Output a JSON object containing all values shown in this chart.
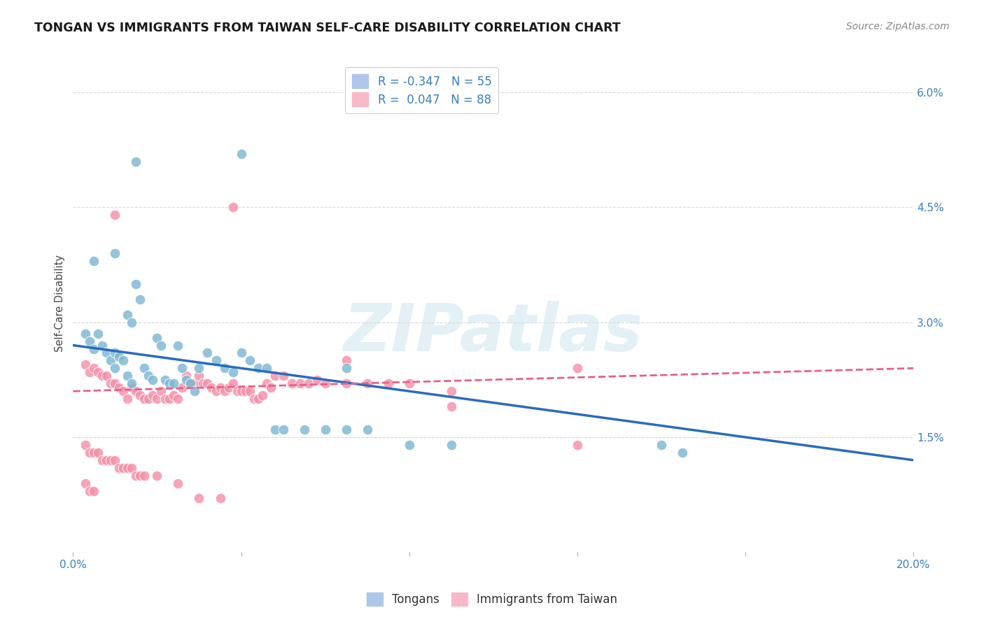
{
  "title": "TONGAN VS IMMIGRANTS FROM TAIWAN SELF-CARE DISABILITY CORRELATION CHART",
  "source": "Source: ZipAtlas.com",
  "ylabel": "Self-Care Disability",
  "xmin": 0.0,
  "xmax": 0.2,
  "ymin": 0.0,
  "ymax": 0.065,
  "yticks": [
    0.0,
    0.015,
    0.03,
    0.045,
    0.06
  ],
  "ytick_labels": [
    "",
    "1.5%",
    "3.0%",
    "4.5%",
    "6.0%"
  ],
  "xticks": [
    0.0,
    0.04,
    0.08,
    0.12,
    0.16,
    0.2
  ],
  "xtick_labels": [
    "0.0%",
    "",
    "",
    "",
    "",
    "20.0%"
  ],
  "watermark_text": "ZIPatlas",
  "tongan_color": "#7bb8d4",
  "taiwan_color": "#f590a8",
  "tongan_line_color": "#2a6bbf",
  "taiwan_line_color": "#e8608a",
  "background_color": "#ffffff",
  "grid_color": "#d8d8d8",
  "tongan_points": [
    [
      0.003,
      0.0285
    ],
    [
      0.004,
      0.0275
    ],
    [
      0.005,
      0.0265
    ],
    [
      0.006,
      0.0285
    ],
    [
      0.007,
      0.027
    ],
    [
      0.008,
      0.026
    ],
    [
      0.009,
      0.025
    ],
    [
      0.01,
      0.026
    ],
    [
      0.011,
      0.0255
    ],
    [
      0.012,
      0.025
    ],
    [
      0.013,
      0.031
    ],
    [
      0.014,
      0.03
    ],
    [
      0.015,
      0.035
    ],
    [
      0.016,
      0.033
    ],
    [
      0.017,
      0.024
    ],
    [
      0.018,
      0.023
    ],
    [
      0.019,
      0.0225
    ],
    [
      0.02,
      0.028
    ],
    [
      0.021,
      0.027
    ],
    [
      0.022,
      0.0225
    ],
    [
      0.023,
      0.022
    ],
    [
      0.024,
      0.022
    ],
    [
      0.025,
      0.027
    ],
    [
      0.026,
      0.024
    ],
    [
      0.027,
      0.0225
    ],
    [
      0.028,
      0.022
    ],
    [
      0.029,
      0.021
    ],
    [
      0.03,
      0.024
    ],
    [
      0.032,
      0.026
    ],
    [
      0.034,
      0.025
    ],
    [
      0.036,
      0.024
    ],
    [
      0.038,
      0.0235
    ],
    [
      0.04,
      0.026
    ],
    [
      0.042,
      0.025
    ],
    [
      0.044,
      0.024
    ],
    [
      0.046,
      0.024
    ],
    [
      0.048,
      0.016
    ],
    [
      0.05,
      0.016
    ],
    [
      0.055,
      0.016
    ],
    [
      0.06,
      0.016
    ],
    [
      0.065,
      0.016
    ],
    [
      0.07,
      0.016
    ],
    [
      0.08,
      0.014
    ],
    [
      0.065,
      0.024
    ],
    [
      0.09,
      0.014
    ],
    [
      0.015,
      0.051
    ],
    [
      0.04,
      0.052
    ],
    [
      0.14,
      0.014
    ],
    [
      0.145,
      0.013
    ],
    [
      0.005,
      0.038
    ],
    [
      0.01,
      0.039
    ],
    [
      0.01,
      0.024
    ],
    [
      0.013,
      0.023
    ],
    [
      0.014,
      0.022
    ]
  ],
  "taiwan_points": [
    [
      0.003,
      0.0245
    ],
    [
      0.004,
      0.0235
    ],
    [
      0.005,
      0.024
    ],
    [
      0.006,
      0.0235
    ],
    [
      0.007,
      0.023
    ],
    [
      0.008,
      0.023
    ],
    [
      0.009,
      0.022
    ],
    [
      0.01,
      0.022
    ],
    [
      0.011,
      0.0215
    ],
    [
      0.012,
      0.021
    ],
    [
      0.013,
      0.02
    ],
    [
      0.014,
      0.0215
    ],
    [
      0.015,
      0.021
    ],
    [
      0.016,
      0.0205
    ],
    [
      0.017,
      0.02
    ],
    [
      0.018,
      0.02
    ],
    [
      0.019,
      0.0205
    ],
    [
      0.02,
      0.02
    ],
    [
      0.021,
      0.021
    ],
    [
      0.022,
      0.02
    ],
    [
      0.023,
      0.02
    ],
    [
      0.024,
      0.0205
    ],
    [
      0.025,
      0.02
    ],
    [
      0.026,
      0.0215
    ],
    [
      0.027,
      0.023
    ],
    [
      0.028,
      0.022
    ],
    [
      0.029,
      0.022
    ],
    [
      0.03,
      0.023
    ],
    [
      0.031,
      0.022
    ],
    [
      0.032,
      0.022
    ],
    [
      0.033,
      0.0215
    ],
    [
      0.034,
      0.021
    ],
    [
      0.035,
      0.0215
    ],
    [
      0.036,
      0.021
    ],
    [
      0.037,
      0.0215
    ],
    [
      0.038,
      0.022
    ],
    [
      0.039,
      0.021
    ],
    [
      0.04,
      0.021
    ],
    [
      0.041,
      0.021
    ],
    [
      0.042,
      0.021
    ],
    [
      0.043,
      0.02
    ],
    [
      0.044,
      0.02
    ],
    [
      0.045,
      0.0205
    ],
    [
      0.046,
      0.022
    ],
    [
      0.047,
      0.0215
    ],
    [
      0.048,
      0.023
    ],
    [
      0.05,
      0.023
    ],
    [
      0.052,
      0.022
    ],
    [
      0.054,
      0.022
    ],
    [
      0.056,
      0.022
    ],
    [
      0.058,
      0.0225
    ],
    [
      0.06,
      0.022
    ],
    [
      0.065,
      0.022
    ],
    [
      0.07,
      0.022
    ],
    [
      0.075,
      0.022
    ],
    [
      0.08,
      0.022
    ],
    [
      0.09,
      0.021
    ],
    [
      0.003,
      0.014
    ],
    [
      0.004,
      0.013
    ],
    [
      0.005,
      0.013
    ],
    [
      0.006,
      0.013
    ],
    [
      0.007,
      0.012
    ],
    [
      0.008,
      0.012
    ],
    [
      0.009,
      0.012
    ],
    [
      0.01,
      0.012
    ],
    [
      0.011,
      0.011
    ],
    [
      0.012,
      0.011
    ],
    [
      0.013,
      0.011
    ],
    [
      0.014,
      0.011
    ],
    [
      0.015,
      0.01
    ],
    [
      0.016,
      0.01
    ],
    [
      0.017,
      0.01
    ],
    [
      0.003,
      0.009
    ],
    [
      0.004,
      0.008
    ],
    [
      0.005,
      0.008
    ],
    [
      0.02,
      0.01
    ],
    [
      0.025,
      0.009
    ],
    [
      0.03,
      0.007
    ],
    [
      0.035,
      0.007
    ],
    [
      0.09,
      0.019
    ],
    [
      0.01,
      0.044
    ],
    [
      0.038,
      0.045
    ],
    [
      0.065,
      0.025
    ],
    [
      0.12,
      0.014
    ],
    [
      0.12,
      0.024
    ]
  ]
}
